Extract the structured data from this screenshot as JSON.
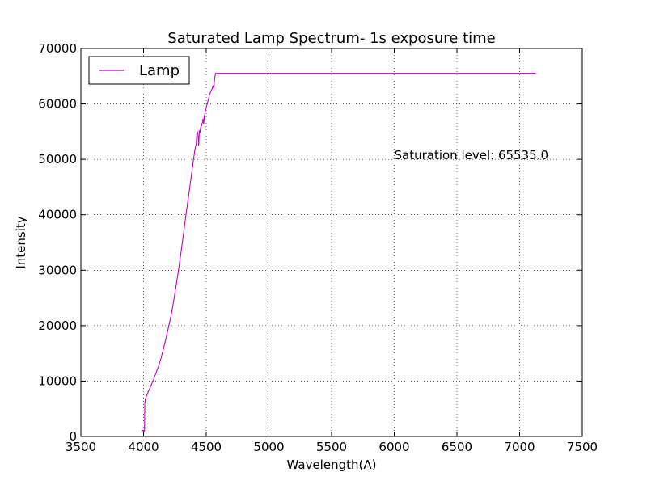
{
  "chart_data": {
    "type": "line",
    "title": "Saturated Lamp Spectrum- 1s exposure time",
    "xlabel": "Wavelength(A)",
    "ylabel": "Intensity",
    "xlim": [
      3500,
      7500
    ],
    "ylim": [
      0,
      70000
    ],
    "xticks": [
      3500,
      4000,
      4500,
      5000,
      5500,
      6000,
      6500,
      7000,
      7500
    ],
    "yticks": [
      0,
      10000,
      20000,
      30000,
      40000,
      50000,
      60000,
      70000
    ],
    "grid": true,
    "legend": {
      "position": "top-left",
      "entries": [
        "Lamp"
      ]
    },
    "annotation": {
      "text": "Saturation level: 65535.0",
      "x": 6000,
      "y": 50000
    },
    "series": [
      {
        "name": "Lamp",
        "color": "#bf00bf",
        "points": [
          [
            3985,
            1000
          ],
          [
            3995,
            1100
          ],
          [
            4003,
            800
          ],
          [
            4008,
            900
          ],
          [
            4010,
            6000
          ],
          [
            4015,
            6800
          ],
          [
            4025,
            7400
          ],
          [
            4040,
            8200
          ],
          [
            4060,
            9200
          ],
          [
            4080,
            10300
          ],
          [
            4100,
            11500
          ],
          [
            4120,
            12700
          ],
          [
            4140,
            14200
          ],
          [
            4160,
            15900
          ],
          [
            4180,
            17800
          ],
          [
            4200,
            19800
          ],
          [
            4220,
            21900
          ],
          [
            4240,
            24400
          ],
          [
            4260,
            27300
          ],
          [
            4280,
            30200
          ],
          [
            4300,
            33400
          ],
          [
            4320,
            36800
          ],
          [
            4340,
            40300
          ],
          [
            4360,
            43500
          ],
          [
            4380,
            46800
          ],
          [
            4390,
            48500
          ],
          [
            4400,
            50200
          ],
          [
            4410,
            51800
          ],
          [
            4420,
            52800
          ],
          [
            4425,
            54600
          ],
          [
            4430,
            55000
          ],
          [
            4435,
            54200
          ],
          [
            4440,
            52500
          ],
          [
            4445,
            55200
          ],
          [
            4450,
            54800
          ],
          [
            4455,
            55700
          ],
          [
            4465,
            56200
          ],
          [
            4475,
            57300
          ],
          [
            4480,
            56400
          ],
          [
            4485,
            57800
          ],
          [
            4495,
            58900
          ],
          [
            4505,
            59800
          ],
          [
            4515,
            60600
          ],
          [
            4525,
            61600
          ],
          [
            4535,
            62200
          ],
          [
            4545,
            62700
          ],
          [
            4555,
            63300
          ],
          [
            4560,
            62800
          ],
          [
            4565,
            64100
          ],
          [
            4570,
            65000
          ],
          [
            4575,
            65535
          ],
          [
            4600,
            65535
          ],
          [
            5000,
            65535
          ],
          [
            5500,
            65535
          ],
          [
            6000,
            65535
          ],
          [
            6500,
            65535
          ],
          [
            7000,
            65535
          ],
          [
            7130,
            65535
          ]
        ]
      }
    ]
  }
}
